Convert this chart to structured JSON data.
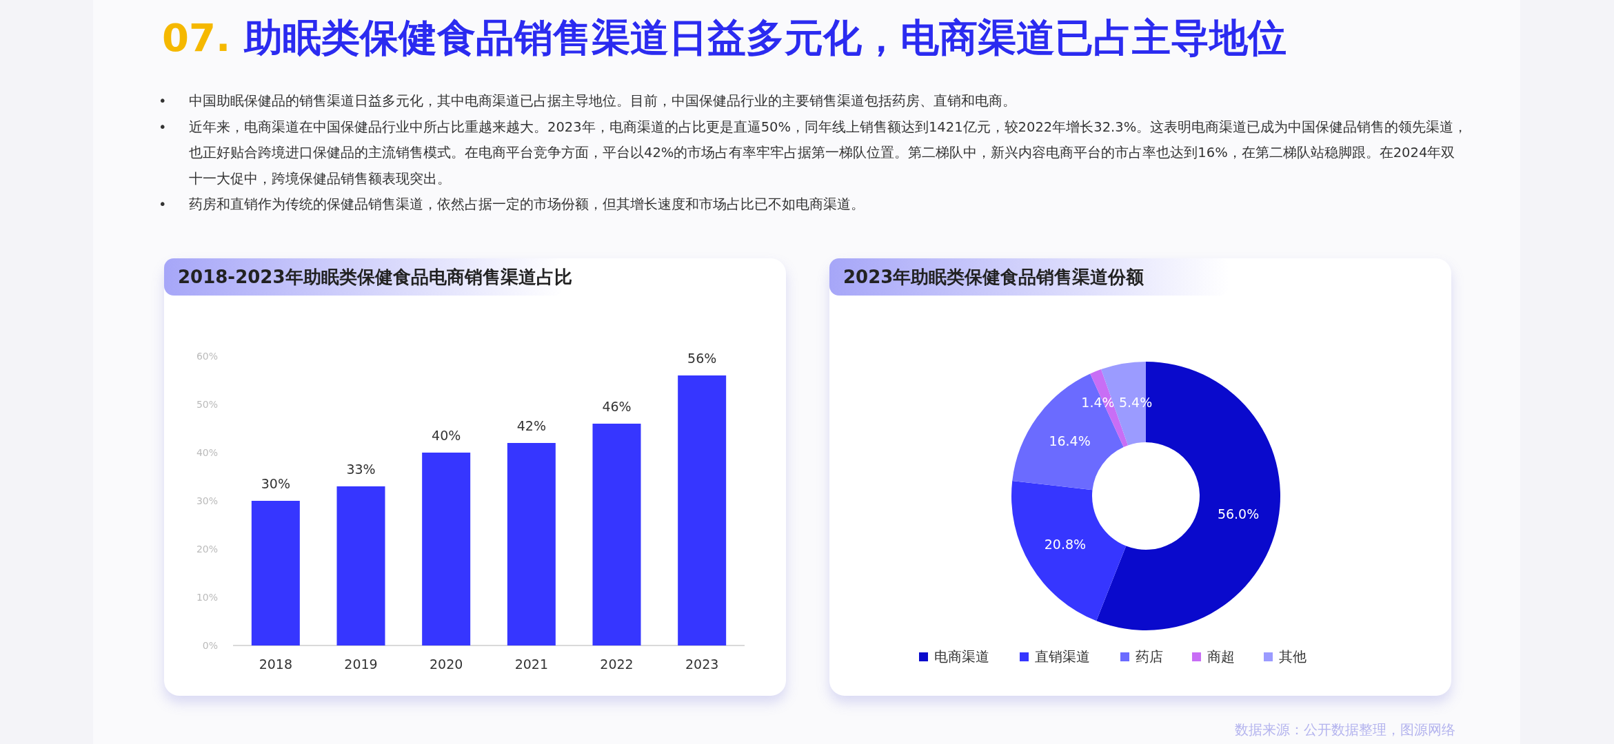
{
  "chart_data": [
    {
      "type": "other",
      "title": "07. 助眠类保健食品销售渠道日益多元化，电商渠道已占主导地位",
      "annotations": [
        "•中国助眠保健品的销售渠道日益多元化，其中电商渠道已占据主导地位。目前，中国保健品行业的主要销售渠道包括药房、直销和电商。",
        "•近年来，电商渠道在中国保健品行业中所占比重越来越大。2023年，电商渠道的占比更是直逼50%，同年线上销售额达到1421亿元，较2022年增长32.3%。这表明电商渠道已成为中国保健品销售的领先渠道，也正好贴合跨境进口保健品的主流销售模式。在电商平台竞争方面，平台以42%的市场占有率牢牢占据第一梯队位置。第二梯队中，新兴内容电商平台的市占率也达到16%，在第二梯队站稳脚跟。在2024年双十一大促中，跨境保健品销售额表现突出。",
        "•药房和直销作为传统的保健品销售渠道，依然占据一定的市场份额，但其增长速度和市场占比已不如电商渠道。",
        "数据来源：公开数据整理，图源网络"
      ]
    },
    {
      "type": "bar",
      "title": "2018-2023年助眠类保健食品电商销售渠道占比",
      "categories": [
        "2018",
        "2019",
        "2020",
        "2021",
        "2022",
        "2023"
      ],
      "values": [
        30,
        33,
        40,
        42,
        46,
        56
      ],
      "color": "#3636ff",
      "value_labels": [
        "30%",
        "33%",
        "40%",
        "42%",
        "46%",
        "56%"
      ],
      "ylim": [
        0,
        60
      ],
      "yticks": [
        {
          "value": 0,
          "label": "0%"
        },
        {
          "value": 10,
          "label": "10%"
        },
        {
          "value": 20,
          "label": "20%"
        },
        {
          "value": 30,
          "label": "30%"
        },
        {
          "value": 40,
          "label": "40%"
        },
        {
          "value": 50,
          "label": "50%"
        },
        {
          "value": 60,
          "label": "60%"
        }
      ]
    },
    {
      "type": "donut",
      "title": "2023年助眠类保健食品销售渠道份额",
      "categories": [
        "电商渠道",
        "直销渠道",
        "药店",
        "商超",
        "其他"
      ],
      "values": [
        56.0,
        20.8,
        16.4,
        1.4,
        5.4
      ],
      "colors": [
        "#0a0acc",
        "#3636ff",
        "#6b6bff",
        "#c86ef5",
        "#9b9bff"
      ],
      "value_labels": [
        "56.0%",
        "20.8%",
        "16.4%",
        "1.4%",
        "5.4%"
      ],
      "legend": "bottom"
    }
  ]
}
